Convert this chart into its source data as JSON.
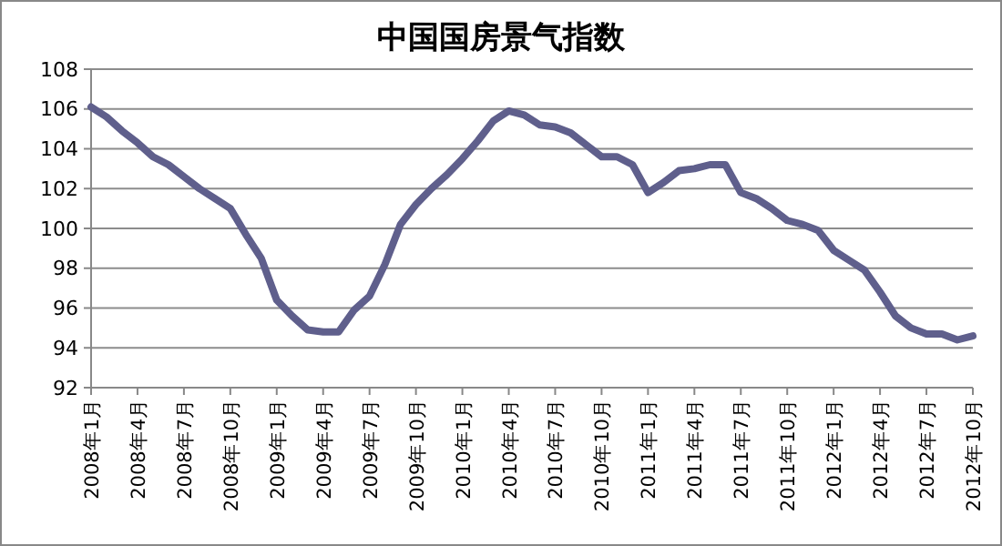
{
  "chart_data": {
    "type": "line",
    "title": "中国国房景气指数",
    "categories": [
      "2008年1月",
      null,
      null,
      "2008年4月",
      null,
      null,
      "2008年7月",
      null,
      null,
      "2008年10月",
      null,
      null,
      "2009年1月",
      null,
      null,
      "2009年4月",
      null,
      null,
      "2009年7月",
      null,
      null,
      "2009年10月",
      null,
      null,
      "2010年1月",
      null,
      null,
      "2010年4月",
      null,
      null,
      "2010年7月",
      null,
      null,
      "2010年10月",
      null,
      null,
      "2011年1月",
      null,
      null,
      "2011年4月",
      null,
      null,
      "2011年7月",
      null,
      null,
      "2011年10月",
      null,
      null,
      "2012年1月",
      null,
      null,
      "2012年4月",
      null,
      null,
      "2012年7月",
      null,
      null,
      "2012年10月"
    ],
    "series": [
      {
        "color": "#5f5f8c",
        "values": [
          106.1,
          105.6,
          104.9,
          104.3,
          103.6,
          103.2,
          102.6,
          102.0,
          101.5,
          101.0,
          99.7,
          98.5,
          96.4,
          95.6,
          94.9,
          94.8,
          94.8,
          95.9,
          96.6,
          98.2,
          100.2,
          101.2,
          102.0,
          102.7,
          103.5,
          104.4,
          105.4,
          105.9,
          105.7,
          105.2,
          105.1,
          104.8,
          104.2,
          103.6,
          103.6,
          103.2,
          101.8,
          102.3,
          102.9,
          103.0,
          103.2,
          103.2,
          101.8,
          101.5,
          101.0,
          100.4,
          100.2,
          99.9,
          98.9,
          98.4,
          97.9,
          96.8,
          95.6,
          95.0,
          94.7,
          94.7,
          94.4,
          94.6
        ]
      }
    ],
    "ylim": [
      92,
      108
    ],
    "yticks": [
      92,
      94,
      96,
      98,
      100,
      102,
      104,
      106,
      108
    ],
    "grid": "y",
    "marker": "none",
    "line_style": "solid"
  }
}
